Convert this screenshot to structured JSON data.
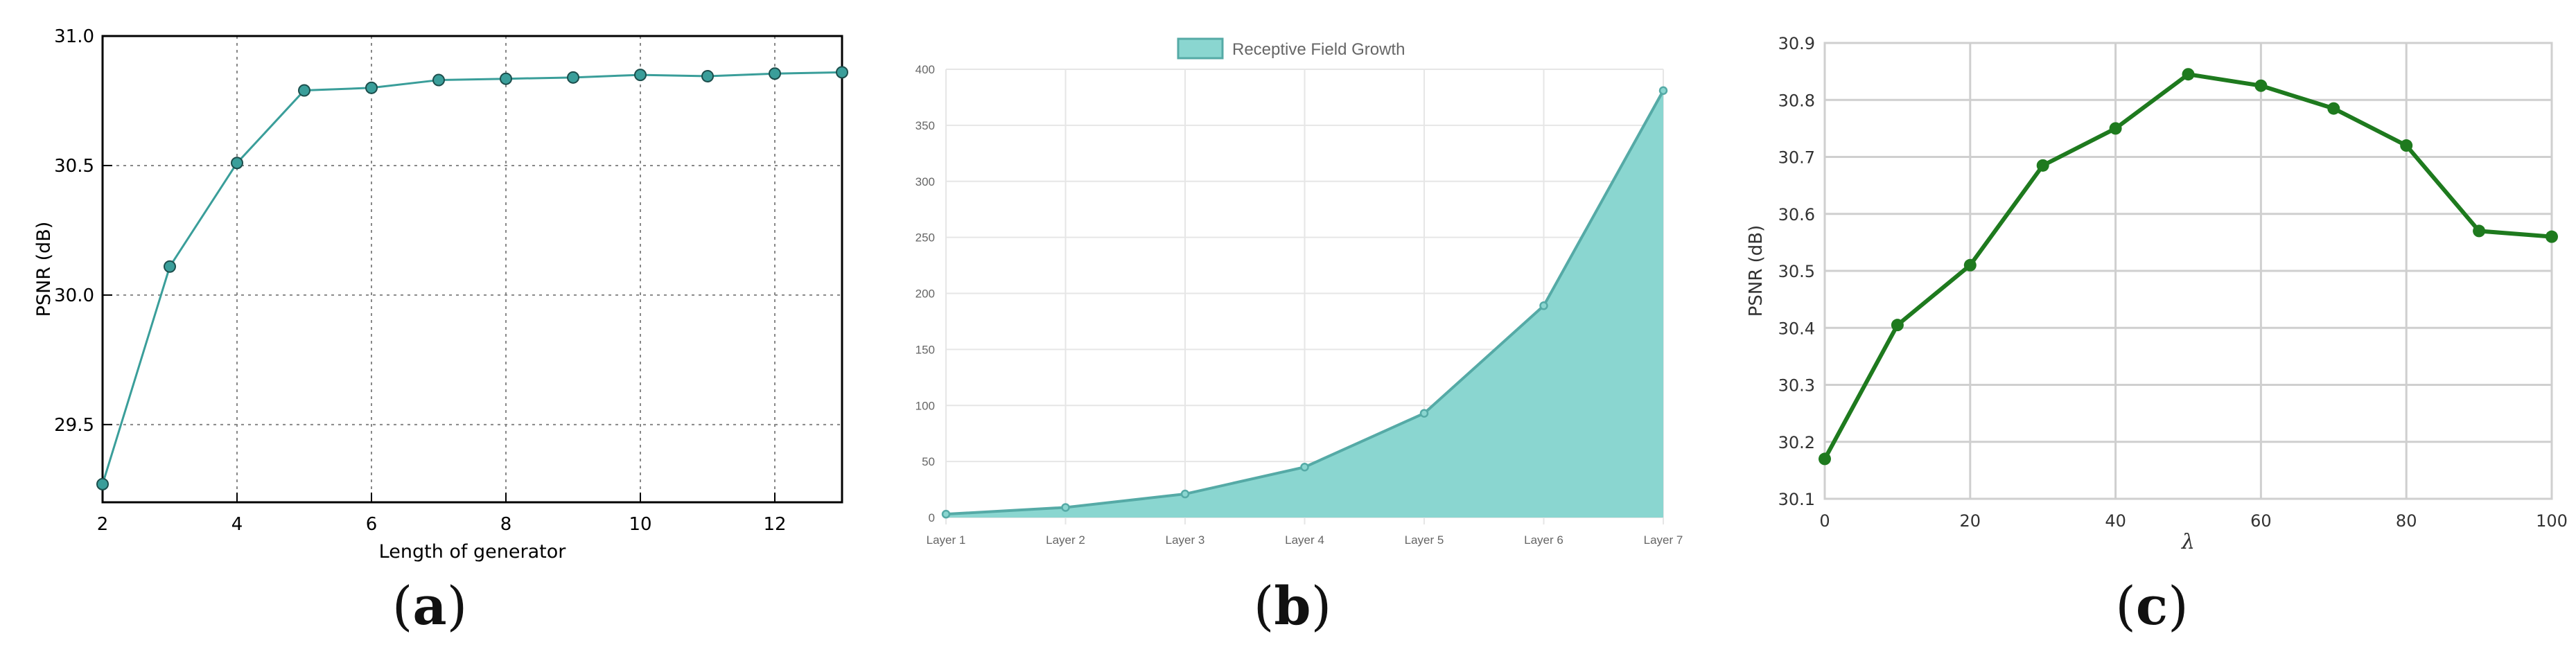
{
  "panels": [
    {
      "caption": "(a)",
      "caption_letter": "a",
      "chart_data": {
        "type": "line",
        "title": "",
        "xlabel": "Length of generator",
        "ylabel": "PSNR (dB)",
        "x": [
          2,
          3,
          4,
          5,
          6,
          7,
          8,
          9,
          10,
          11,
          12,
          13
        ],
        "series": [
          {
            "name": "",
            "values": [
              29.27,
              30.11,
              30.51,
              30.79,
              30.8,
              30.83,
              30.835,
              30.84,
              30.85,
              30.845,
              30.855,
              30.86
            ]
          }
        ],
        "xlim": [
          2,
          13
        ],
        "ylim": [
          29.2,
          31.0
        ],
        "xticks": [
          2,
          4,
          6,
          8,
          10,
          12
        ],
        "yticks": [
          29.5,
          30.0,
          30.5,
          31.0
        ],
        "xtick_labels": [
          "2",
          "4",
          "6",
          "8",
          "10",
          "12"
        ],
        "ytick_labels": [
          "29.5",
          "30.0",
          "30.5",
          "31.0"
        ],
        "grid": true,
        "color": "#3a9e9a"
      }
    },
    {
      "caption": "(b)",
      "caption_letter": "b",
      "chart_data": {
        "type": "area",
        "title": "",
        "xlabel": "",
        "ylabel": "",
        "categories": [
          "Layer 1",
          "Layer 2",
          "Layer 3",
          "Layer 4",
          "Layer 5",
          "Layer 6",
          "Layer 7"
        ],
        "series": [
          {
            "name": "Receptive Field Growth",
            "values": [
              3,
              9,
              21,
              45,
              93,
              189,
              381
            ]
          }
        ],
        "ylim": [
          0,
          400
        ],
        "yticks": [
          0,
          50,
          100,
          150,
          200,
          250,
          300,
          350,
          400
        ],
        "ytick_labels": [
          "0",
          "50",
          "100",
          "150",
          "200",
          "250",
          "300",
          "350",
          "400"
        ],
        "legend": "top-center",
        "grid": true,
        "fill_color": "#8ad6d0",
        "line_color": "#55aaa6"
      }
    },
    {
      "caption": "(c)",
      "caption_letter": "c",
      "chart_data": {
        "type": "line",
        "title": "",
        "xlabel": "λ",
        "ylabel": "PSNR (dB)",
        "x": [
          0,
          10,
          20,
          30,
          40,
          50,
          60,
          70,
          80,
          90,
          100
        ],
        "series": [
          {
            "name": "",
            "values": [
              30.17,
              30.405,
              30.51,
              30.685,
              30.75,
              30.845,
              30.825,
              30.785,
              30.72,
              30.57,
              30.56
            ]
          }
        ],
        "xlim": [
          0,
          100
        ],
        "ylim": [
          30.1,
          30.9
        ],
        "xticks": [
          0,
          20,
          40,
          60,
          80,
          100
        ],
        "yticks": [
          30.1,
          30.2,
          30.3,
          30.4,
          30.5,
          30.6,
          30.7,
          30.8,
          30.9
        ],
        "xtick_labels": [
          "0",
          "20",
          "40",
          "60",
          "80",
          "100"
        ],
        "ytick_labels": [
          "30.1",
          "30.2",
          "30.3",
          "30.4",
          "30.5",
          "30.6",
          "30.7",
          "30.8",
          "30.9"
        ],
        "grid": true,
        "color": "#1e7a1e"
      }
    }
  ]
}
